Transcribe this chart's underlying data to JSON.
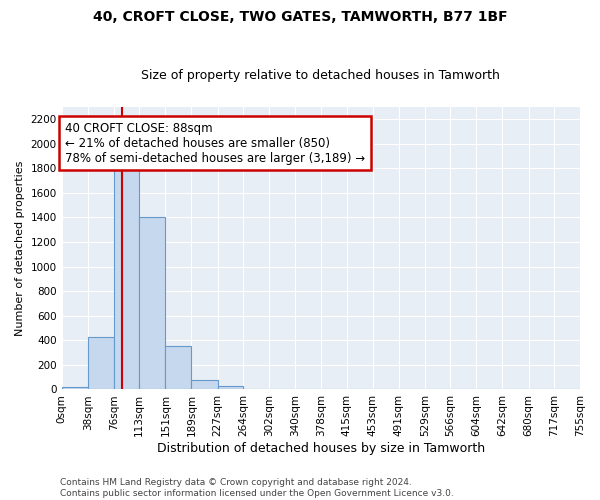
{
  "title1": "40, CROFT CLOSE, TWO GATES, TAMWORTH, B77 1BF",
  "title2": "Size of property relative to detached houses in Tamworth",
  "xlabel": "Distribution of detached houses by size in Tamworth",
  "ylabel": "Number of detached properties",
  "bin_edges": [
    0,
    38,
    76,
    113,
    151,
    189,
    227,
    264,
    302,
    340,
    378,
    415,
    453,
    491,
    529,
    566,
    604,
    642,
    680,
    717,
    755
  ],
  "bar_heights": [
    20,
    430,
    1800,
    1400,
    350,
    75,
    30,
    0,
    0,
    0,
    0,
    0,
    0,
    0,
    0,
    0,
    0,
    0,
    0,
    0
  ],
  "bar_color": "#c5d8ed",
  "bar_edge_color": "#6699cc",
  "bg_color": "#e8eef5",
  "property_size": 88,
  "red_line_color": "#cc0000",
  "annotation_line1": "40 CROFT CLOSE: 88sqm",
  "annotation_line2": "← 21% of detached houses are smaller (850)",
  "annotation_line3": "78% of semi-detached houses are larger (3,189) →",
  "annotation_box_color": "#ffffff",
  "annotation_box_edge": "#cc0000",
  "ylim": [
    0,
    2300
  ],
  "yticks": [
    0,
    200,
    400,
    600,
    800,
    1000,
    1200,
    1400,
    1600,
    1800,
    2000,
    2200
  ],
  "footer1": "Contains HM Land Registry data © Crown copyright and database right 2024.",
  "footer2": "Contains public sector information licensed under the Open Government Licence v3.0.",
  "title1_fontsize": 10,
  "title2_fontsize": 9,
  "xlabel_fontsize": 9,
  "ylabel_fontsize": 8,
  "tick_fontsize": 7.5,
  "annotation_fontsize": 8.5,
  "footer_fontsize": 6.5
}
